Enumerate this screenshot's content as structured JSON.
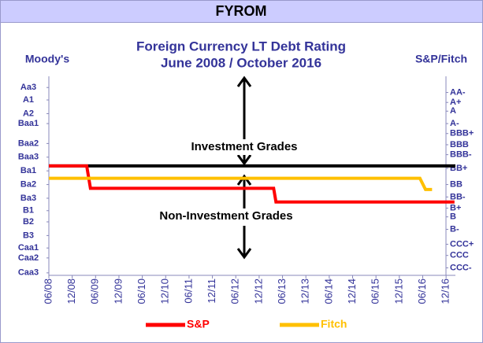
{
  "chart_data": {
    "type": "line",
    "header": "FYROM",
    "title": "Foreign Currency LT Debt Rating",
    "subtitle": "June 2008 / October 2016",
    "y_axis_label": "Moody's",
    "y2_axis_label": "S&P/Fitch",
    "annotations": [
      "Investment Grades",
      "Non-Investment Grades"
    ],
    "threshold": 8.8,
    "threshold_color": "#000000",
    "xlim": [
      2008.5,
      2017.2
    ],
    "xticks": [
      {
        "value": 2008.5,
        "label": "06/08"
      },
      {
        "value": 2009.0,
        "label": "12/08"
      },
      {
        "value": 2009.5,
        "label": "06/09"
      },
      {
        "value": 2010.0,
        "label": "12/09"
      },
      {
        "value": 2010.5,
        "label": "06/10"
      },
      {
        "value": 2011.0,
        "label": "12/10"
      },
      {
        "value": 2011.5,
        "label": "06/11"
      },
      {
        "value": 2012.0,
        "label": "12/11"
      },
      {
        "value": 2012.5,
        "label": "06/12"
      },
      {
        "value": 2013.0,
        "label": "12/12"
      },
      {
        "value": 2013.5,
        "label": "06/13"
      },
      {
        "value": 2014.0,
        "label": "12/13"
      },
      {
        "value": 2014.5,
        "label": "06/14"
      },
      {
        "value": 2015.0,
        "label": "12/14"
      },
      {
        "value": 2015.5,
        "label": "06/15"
      },
      {
        "value": 2016.0,
        "label": "12/15"
      },
      {
        "value": 2016.5,
        "label": "06/16"
      },
      {
        "value": 2017.0,
        "label": "12/16"
      }
    ],
    "ylim": [
      0,
      16
    ],
    "yticks": [
      {
        "value": 15.1,
        "label": "Aa3"
      },
      {
        "value": 14.1,
        "label": "A1"
      },
      {
        "value": 13.0,
        "label": "A2"
      },
      {
        "value": 12.2,
        "label": "Baa1"
      },
      {
        "value": 10.6,
        "label": "Baa2"
      },
      {
        "value": 9.5,
        "label": "Baa3"
      },
      {
        "value": 8.4,
        "label": "Ba1"
      },
      {
        "value": 7.3,
        "label": "Ba2"
      },
      {
        "value": 6.2,
        "label": "Ba3"
      },
      {
        "value": 5.2,
        "label": "B1"
      },
      {
        "value": 4.3,
        "label": "B2"
      },
      {
        "value": 3.2,
        "label": "B3"
      },
      {
        "value": 2.2,
        "label": "Caa1"
      },
      {
        "value": 1.4,
        "label": "Caa2"
      },
      {
        "value": 0.2,
        "label": "Caa3"
      }
    ],
    "y2lim": [
      0,
      16
    ],
    "y2ticks": [
      {
        "value": 14.7,
        "label": "AA-"
      },
      {
        "value": 13.9,
        "label": "A+"
      },
      {
        "value": 13.2,
        "label": "A"
      },
      {
        "value": 12.2,
        "label": "A-"
      },
      {
        "value": 11.4,
        "label": "BBB+"
      },
      {
        "value": 10.5,
        "label": "BBB"
      },
      {
        "value": 9.7,
        "label": "BBB-"
      },
      {
        "value": 8.6,
        "label": "BB+"
      },
      {
        "value": 7.3,
        "label": "BB"
      },
      {
        "value": 6.3,
        "label": "BB-"
      },
      {
        "value": 5.4,
        "label": "B+"
      },
      {
        "value": 4.7,
        "label": "B"
      },
      {
        "value": 3.7,
        "label": "B-"
      },
      {
        "value": 2.5,
        "label": "CCC+"
      },
      {
        "value": 1.6,
        "label": "CCC"
      },
      {
        "value": 0.6,
        "label": "CCC-"
      }
    ],
    "series": [
      {
        "name": "S&P",
        "color": "#ff0000",
        "x": [
          2008.5,
          2009.31,
          2009.39,
          2013.31,
          2013.36,
          2017.18
        ],
        "values": [
          8.8,
          8.8,
          7.0,
          7.0,
          5.9,
          5.9
        ]
      },
      {
        "name": "Fitch",
        "color": "#ffc000",
        "x": [
          2008.5,
          2016.44,
          2016.56,
          2016.7
        ],
        "values": [
          7.8,
          7.8,
          6.9,
          6.9
        ]
      }
    ]
  }
}
